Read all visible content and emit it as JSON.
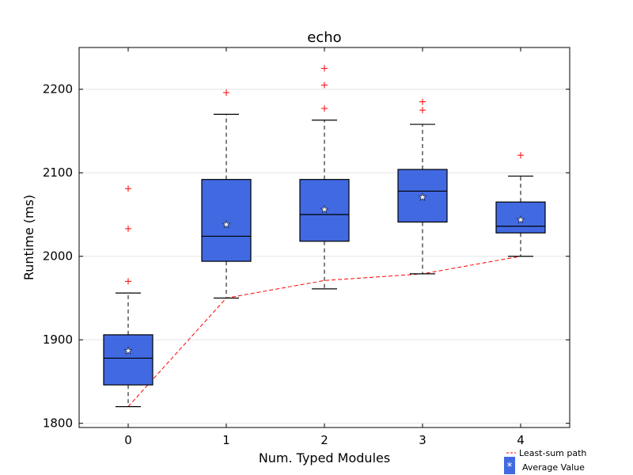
{
  "chart_data": {
    "type": "box",
    "title": "echo",
    "xlabel": "Num. Typed Modules",
    "ylabel": "Runtime (ms)",
    "ylim": [
      1795,
      2250
    ],
    "xlim": [
      -0.5,
      4.5
    ],
    "x_ticks": [
      "0",
      "1",
      "2",
      "3",
      "4"
    ],
    "y_ticks": [
      1800,
      1900,
      2000,
      2100,
      2200
    ],
    "grid": "horizontal",
    "box_color": "#4169e1",
    "outlier_color": "#ff0000",
    "path_color": "#ff0000",
    "boxes": [
      {
        "category": "0",
        "whisker_low": 1820,
        "q1": 1846,
        "median": 1878,
        "q3": 1906,
        "whisker_high": 1956,
        "mean": 1888,
        "outliers": [
          1970,
          2033,
          2081
        ]
      },
      {
        "category": "1",
        "whisker_low": 1950,
        "q1": 1994,
        "median": 2024,
        "q3": 2092,
        "whisker_high": 2170,
        "mean": 2039,
        "outliers": [
          2196
        ]
      },
      {
        "category": "2",
        "whisker_low": 1961,
        "q1": 2018,
        "median": 2050,
        "q3": 2092,
        "whisker_high": 2163,
        "mean": 2057,
        "outliers": [
          2177,
          2205,
          2225
        ]
      },
      {
        "category": "3",
        "whisker_low": 1979,
        "q1": 2041,
        "median": 2078,
        "q3": 2104,
        "whisker_high": 2158,
        "mean": 2072,
        "outliers": [
          2175,
          2185
        ]
      },
      {
        "category": "4",
        "whisker_low": 2000,
        "q1": 2028,
        "median": 2036,
        "q3": 2065,
        "whisker_high": 2096,
        "mean": 2045,
        "outliers": [
          2121
        ]
      }
    ],
    "least_sum_path": [
      1820,
      1950,
      1971,
      1979,
      2000
    ],
    "legend": {
      "position": "bottom-right",
      "entries": [
        "Least-sum path",
        "Average Value"
      ],
      "average_marker": "*"
    }
  }
}
